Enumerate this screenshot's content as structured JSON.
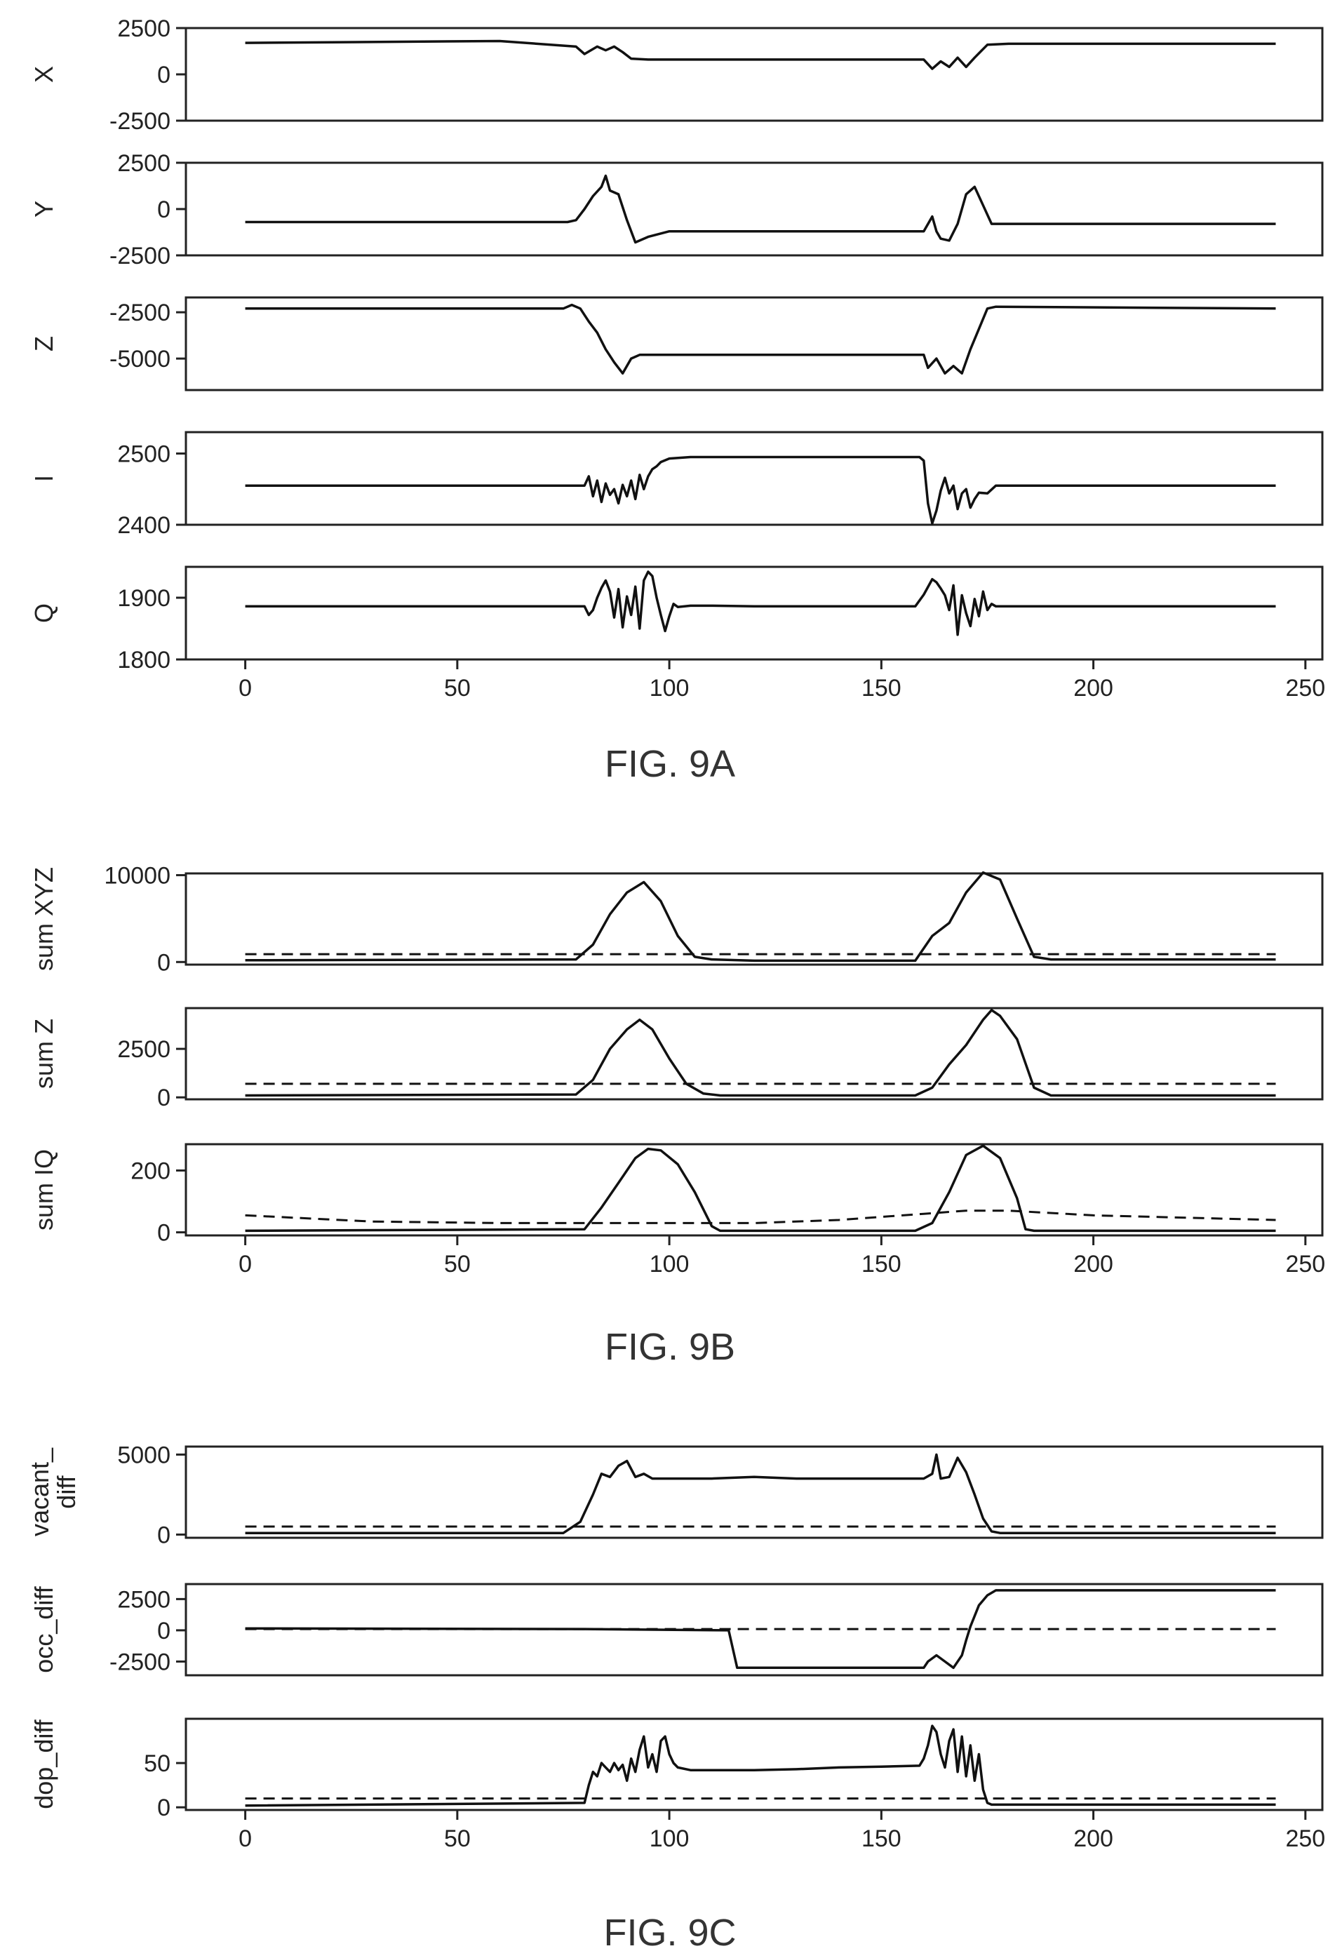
{
  "chart_data": [
    {
      "type": "line",
      "figure": "FIG. 9A",
      "ylabel": "X",
      "x": [
        0,
        60,
        78,
        80,
        83,
        85,
        87,
        89,
        91,
        95,
        100,
        110,
        120,
        130,
        140,
        150,
        158,
        160,
        162,
        164,
        166,
        168,
        170,
        172,
        175,
        180,
        200,
        243
      ],
      "series": [
        {
          "style": "solid",
          "values": [
            1700,
            1800,
            1500,
            1100,
            1500,
            1300,
            1500,
            1200,
            850,
            800,
            800,
            800,
            800,
            800,
            800,
            800,
            800,
            800,
            300,
            700,
            400,
            900,
            400,
            900,
            1600,
            1650,
            1650,
            1650
          ]
        }
      ],
      "yticks": [
        2500,
        0,
        -2500
      ],
      "ylim": [
        -2500,
        2500
      ]
    },
    {
      "type": "line",
      "figure": "FIG. 9A",
      "ylabel": "Y",
      "x": [
        0,
        76,
        78,
        80,
        82,
        84,
        85,
        86,
        88,
        90,
        92,
        95,
        100,
        110,
        120,
        130,
        140,
        150,
        160,
        162,
        163,
        164,
        166,
        168,
        170,
        172,
        174,
        176,
        243
      ],
      "series": [
        {
          "style": "solid",
          "values": [
            -700,
            -700,
            -600,
            0,
            700,
            1200,
            1800,
            1000,
            800,
            -600,
            -1800,
            -1500,
            -1200,
            -1200,
            -1200,
            -1200,
            -1200,
            -1200,
            -1200,
            -400,
            -1200,
            -1600,
            -1700,
            -800,
            800,
            1200,
            200,
            -800,
            -800
          ]
        }
      ],
      "yticks": [
        2500,
        0,
        -2500
      ],
      "ylim": [
        -2500,
        2500
      ]
    },
    {
      "type": "line",
      "figure": "FIG. 9A",
      "ylabel": "Z",
      "x": [
        0,
        75,
        77,
        79,
        81,
        83,
        85,
        87,
        89,
        91,
        93,
        95,
        100,
        110,
        120,
        130,
        140,
        150,
        160,
        161,
        163,
        165,
        167,
        169,
        171,
        173,
        175,
        177,
        243
      ],
      "series": [
        {
          "style": "solid",
          "values": [
            -2300,
            -2300,
            -2100,
            -2300,
            -3000,
            -3600,
            -4500,
            -5200,
            -5800,
            -5000,
            -4800,
            -4800,
            -4800,
            -4800,
            -4800,
            -4800,
            -4800,
            -4800,
            -4800,
            -5500,
            -5000,
            -5800,
            -5400,
            -5800,
            -4500,
            -3400,
            -2300,
            -2200,
            -2300
          ]
        }
      ],
      "yticks": [
        -2500,
        -5000
      ],
      "ylim": [
        -6700,
        -1700
      ]
    },
    {
      "type": "line",
      "figure": "FIG. 9A",
      "ylabel": "I",
      "x": [
        0,
        80,
        81,
        82,
        83,
        84,
        85,
        86,
        87,
        88,
        89,
        90,
        91,
        92,
        93,
        94,
        95,
        96,
        97,
        98,
        100,
        105,
        120,
        140,
        159,
        160,
        161,
        162,
        163,
        164,
        165,
        166,
        167,
        168,
        169,
        170,
        171,
        172,
        173,
        175,
        177,
        243
      ],
      "series": [
        {
          "style": "solid",
          "values": [
            2455,
            2455,
            2468,
            2440,
            2462,
            2432,
            2458,
            2442,
            2450,
            2430,
            2456,
            2440,
            2462,
            2436,
            2470,
            2450,
            2468,
            2478,
            2482,
            2488,
            2493,
            2495,
            2495,
            2495,
            2495,
            2490,
            2430,
            2402,
            2420,
            2448,
            2466,
            2444,
            2455,
            2422,
            2444,
            2450,
            2424,
            2436,
            2445,
            2444,
            2455,
            2455
          ]
        }
      ],
      "yticks": [
        2500,
        2400
      ],
      "ylim": [
        2400,
        2530
      ]
    },
    {
      "type": "line",
      "figure": "FIG. 9A",
      "ylabel": "Q",
      "x": [
        0,
        80,
        81,
        82,
        83,
        84,
        85,
        86,
        87,
        88,
        89,
        90,
        91,
        92,
        93,
        94,
        95,
        96,
        97,
        98,
        99,
        100,
        101,
        102,
        105,
        110,
        120,
        130,
        140,
        150,
        158,
        160,
        162,
        163,
        164,
        165,
        166,
        167,
        168,
        169,
        170,
        171,
        172,
        173,
        174,
        175,
        176,
        177,
        243
      ],
      "series": [
        {
          "style": "solid",
          "values": [
            1886,
            1886,
            1872,
            1880,
            1900,
            1916,
            1928,
            1910,
            1868,
            1914,
            1852,
            1902,
            1872,
            1918,
            1850,
            1928,
            1942,
            1935,
            1900,
            1872,
            1846,
            1870,
            1890,
            1885,
            1887,
            1887,
            1886,
            1886,
            1886,
            1886,
            1886,
            1905,
            1930,
            1925,
            1915,
            1904,
            1880,
            1920,
            1840,
            1904,
            1875,
            1854,
            1898,
            1870,
            1910,
            1880,
            1890,
            1886,
            1886
          ]
        }
      ],
      "yticks": [
        1900,
        1800
      ],
      "ylim": [
        1800,
        1950
      ]
    },
    {
      "type": "line",
      "figure": "FIG. 9B",
      "ylabel": "sum XYZ",
      "x": [
        0,
        78,
        82,
        86,
        90,
        94,
        98,
        102,
        106,
        110,
        120,
        140,
        158,
        162,
        166,
        170,
        174,
        178,
        182,
        186,
        190,
        243
      ],
      "series": [
        {
          "style": "solid",
          "values": [
            200,
            300,
            2000,
            5500,
            8000,
            9200,
            7000,
            3000,
            600,
            300,
            150,
            150,
            150,
            3000,
            4500,
            8000,
            10300,
            9500,
            5000,
            600,
            300,
            300
          ]
        },
        {
          "style": "dashed",
          "x": [
            0,
            243
          ],
          "values": [
            900,
            900
          ]
        }
      ],
      "yticks": [
        10000,
        0
      ],
      "ylim": [
        -300,
        10200
      ]
    },
    {
      "type": "line",
      "figure": "FIG. 9B",
      "ylabel": "sum Z",
      "x": [
        0,
        78,
        82,
        86,
        90,
        93,
        96,
        100,
        104,
        108,
        112,
        120,
        140,
        158,
        162,
        166,
        170,
        174,
        176,
        178,
        182,
        186,
        190,
        243
      ],
      "series": [
        {
          "style": "solid",
          "values": [
            100,
            150,
            900,
            2500,
            3500,
            4000,
            3500,
            2000,
            700,
            200,
            100,
            100,
            100,
            100,
            500,
            1700,
            2700,
            4000,
            4500,
            4200,
            3000,
            500,
            100,
            100
          ]
        },
        {
          "style": "dashed",
          "x": [
            0,
            243
          ],
          "values": [
            700,
            700
          ]
        }
      ],
      "yticks": [
        2500,
        0
      ],
      "ylim": [
        -100,
        4600
      ]
    },
    {
      "type": "line",
      "figure": "FIG. 9B",
      "ylabel": "sum IQ",
      "x": [
        0,
        80,
        84,
        88,
        92,
        95,
        98,
        102,
        106,
        110,
        112,
        120,
        140,
        158,
        162,
        166,
        170,
        174,
        178,
        182,
        184,
        186,
        243
      ],
      "series": [
        {
          "style": "solid",
          "values": [
            5,
            10,
            80,
            160,
            240,
            270,
            265,
            220,
            130,
            20,
            5,
            5,
            5,
            5,
            30,
            130,
            250,
            280,
            240,
            110,
            10,
            5,
            5
          ]
        },
        {
          "style": "dashed",
          "x": [
            0,
            30,
            60,
            80,
            100,
            120,
            140,
            160,
            170,
            180,
            200,
            243
          ],
          "values": [
            55,
            35,
            30,
            30,
            30,
            30,
            40,
            60,
            70,
            70,
            55,
            40
          ]
        }
      ],
      "yticks": [
        200,
        0
      ],
      "ylim": [
        -10,
        285
      ]
    },
    {
      "type": "line",
      "figure": "FIG. 9C",
      "ylabel": "vacant_ diff",
      "x": [
        0,
        75,
        79,
        82,
        84,
        86,
        88,
        90,
        92,
        94,
        96,
        100,
        110,
        120,
        130,
        140,
        150,
        160,
        162,
        163,
        164,
        166,
        168,
        170,
        172,
        174,
        176,
        178,
        243
      ],
      "series": [
        {
          "style": "solid",
          "values": [
            100,
            100,
            800,
            2500,
            3800,
            3600,
            4300,
            4600,
            3600,
            3800,
            3500,
            3500,
            3500,
            3600,
            3500,
            3500,
            3500,
            3500,
            3800,
            5000,
            3500,
            3600,
            4800,
            3900,
            2500,
            1000,
            200,
            100,
            100
          ]
        },
        {
          "style": "dashed",
          "x": [
            0,
            243
          ],
          "values": [
            500,
            500
          ]
        }
      ],
      "yticks": [
        5000,
        0
      ],
      "ylim": [
        -200,
        5500
      ]
    },
    {
      "type": "line",
      "figure": "FIG. 9C",
      "ylabel": "occ_diff",
      "x": [
        0,
        80,
        114,
        116,
        160,
        161,
        163,
        165,
        167,
        169,
        170,
        171,
        173,
        175,
        177,
        180,
        200,
        243
      ],
      "series": [
        {
          "style": "solid",
          "values": [
            150,
            100,
            0,
            -3000,
            -3000,
            -2500,
            -2000,
            -2500,
            -3000,
            -2000,
            -800,
            300,
            2000,
            2800,
            3200,
            3200,
            3200,
            3200
          ]
        },
        {
          "style": "dashed",
          "x": [
            0,
            243
          ],
          "values": [
            100,
            100
          ]
        }
      ],
      "yticks": [
        2500,
        0,
        -2500
      ],
      "ylim": [
        -3600,
        3700
      ]
    },
    {
      "type": "line",
      "figure": "FIG. 9C",
      "ylabel": "dop_diff",
      "x": [
        0,
        80,
        81,
        82,
        83,
        84,
        85,
        86,
        87,
        88,
        89,
        90,
        91,
        92,
        93,
        94,
        95,
        96,
        97,
        98,
        99,
        100,
        101,
        102,
        105,
        110,
        120,
        130,
        140,
        150,
        159,
        160,
        161,
        162,
        163,
        164,
        165,
        166,
        167,
        168,
        169,
        170,
        171,
        172,
        173,
        174,
        175,
        176,
        177,
        180,
        243
      ],
      "series": [
        {
          "style": "solid",
          "values": [
            2,
            5,
            25,
            40,
            35,
            50,
            45,
            40,
            50,
            42,
            48,
            30,
            55,
            40,
            65,
            80,
            45,
            60,
            40,
            75,
            80,
            60,
            50,
            45,
            42,
            42,
            42,
            43,
            45,
            46,
            47,
            55,
            70,
            92,
            85,
            60,
            45,
            75,
            88,
            40,
            80,
            35,
            70,
            30,
            60,
            20,
            5,
            3,
            3,
            3,
            3
          ]
        },
        {
          "style": "dashed",
          "x": [
            0,
            243
          ],
          "values": [
            10,
            10
          ]
        }
      ],
      "yticks": [
        50,
        0
      ],
      "ylim": [
        -3,
        100
      ]
    }
  ],
  "xaxis": {
    "xlim": [
      -14,
      254
    ],
    "xticks": [
      0,
      50,
      100,
      150,
      200,
      250
    ]
  },
  "captions": [
    "FIG. 9A",
    "FIG. 9B",
    "FIG. 9C"
  ]
}
